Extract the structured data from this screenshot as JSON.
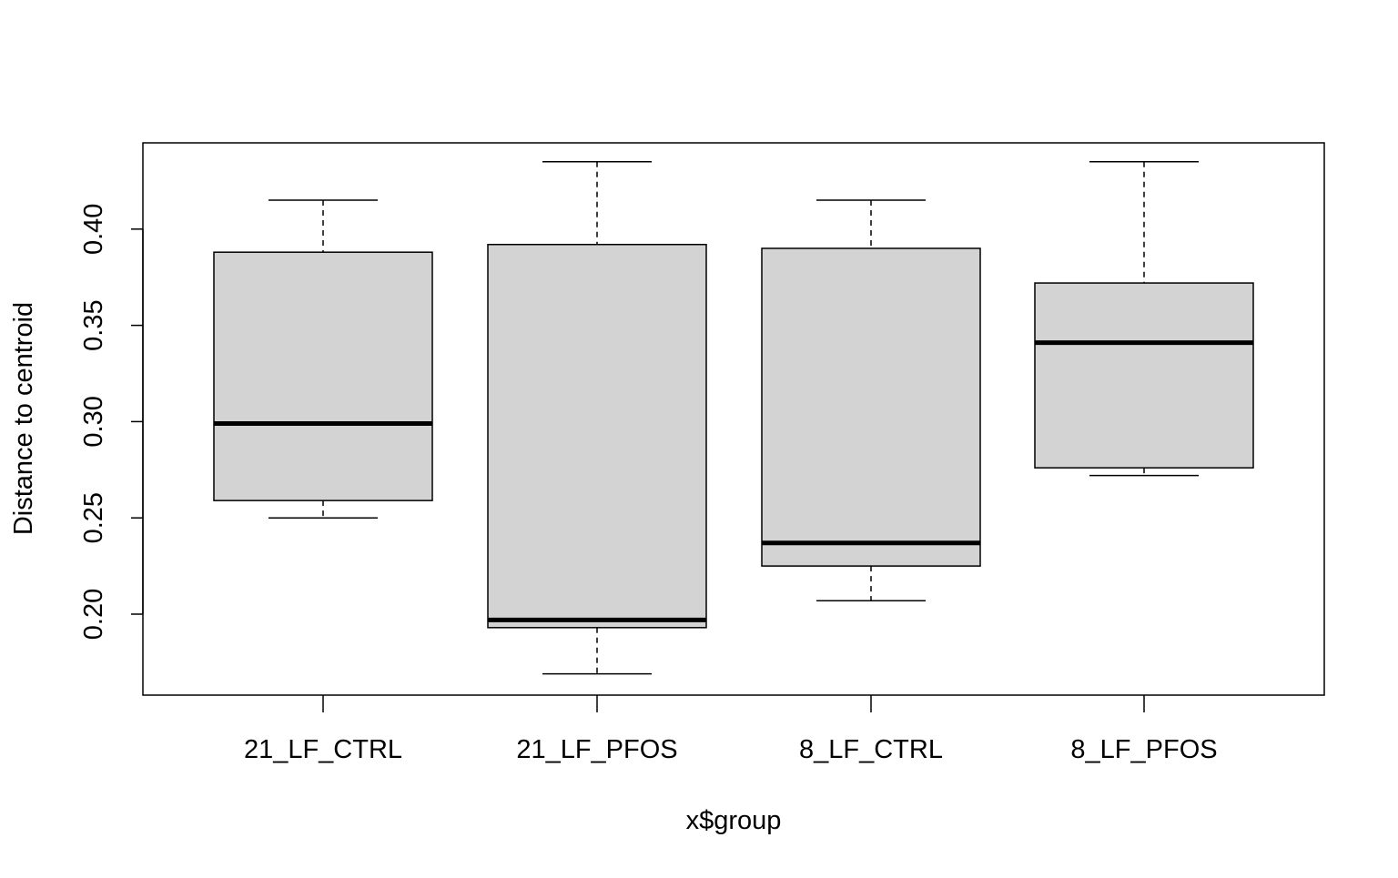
{
  "chart_data": {
    "type": "boxplot",
    "title": "",
    "xlabel": "x$group",
    "ylabel": "Distance to centroid",
    "ylim": [
      0.158,
      0.444
    ],
    "yticks": [
      0.2,
      0.25,
      0.3,
      0.35,
      0.4
    ],
    "ytick_labels": [
      "0.20",
      "0.25",
      "0.30",
      "0.35",
      "0.40"
    ],
    "categories": [
      "21_LF_CTRL",
      "21_LF_PFOS",
      "8_LF_CTRL",
      "8_LF_PFOS"
    ],
    "boxes": [
      {
        "name": "21_LF_CTRL",
        "min": 0.25,
        "q1": 0.259,
        "median": 0.299,
        "q3": 0.388,
        "max": 0.415
      },
      {
        "name": "21_LF_PFOS",
        "min": 0.169,
        "q1": 0.193,
        "median": 0.197,
        "q3": 0.392,
        "max": 0.435
      },
      {
        "name": "8_LF_CTRL",
        "min": 0.207,
        "q1": 0.225,
        "median": 0.237,
        "q3": 0.39,
        "max": 0.415
      },
      {
        "name": "8_LF_PFOS",
        "min": 0.272,
        "q1": 0.276,
        "median": 0.341,
        "q3": 0.372,
        "max": 0.435
      }
    ],
    "grid": false,
    "box_fill": "#d3d3d3",
    "line_color": "#000000"
  }
}
